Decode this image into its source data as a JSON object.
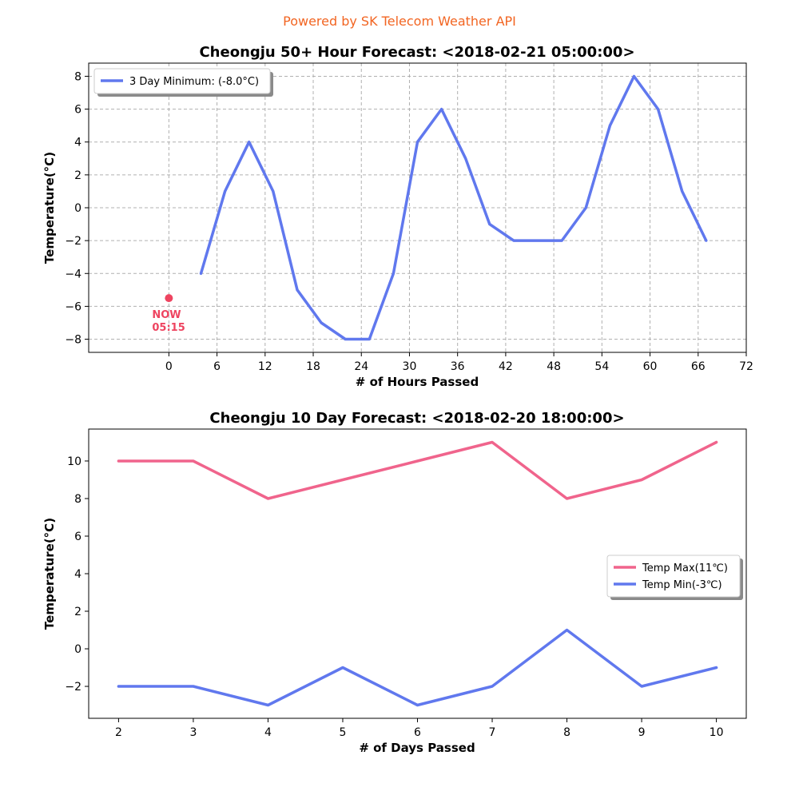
{
  "header": {
    "credit": "Powered by SK Telecom Weather API"
  },
  "colors": {
    "blue": "#6078ee",
    "red": "#f0648c",
    "now": "#ee4460",
    "credit": "#f26522"
  },
  "chart_data": [
    {
      "type": "line",
      "title": "Cheongju 50+ Hour Forecast: <2018-02-21 05:00:00>",
      "xlabel": "# of Hours Passed",
      "ylabel": "Temperature(°C)",
      "xlim": [
        -10,
        72
      ],
      "ylim": [
        -8.8,
        8.8
      ],
      "xticks": [
        0,
        6,
        12,
        18,
        24,
        30,
        36,
        42,
        48,
        54,
        60,
        66,
        72
      ],
      "yticks": [
        -8,
        -6,
        -4,
        -2,
        0,
        2,
        4,
        6,
        8
      ],
      "grid": true,
      "legend_position": "top-left",
      "series": [
        {
          "name": "3 Day Minimum: (-8.0°C)",
          "color": "#6078ee",
          "x": [
            4,
            7,
            10,
            13,
            16,
            19,
            22,
            25,
            28,
            31,
            34,
            37,
            40,
            43,
            46,
            49,
            52,
            55,
            58,
            61,
            64,
            67
          ],
          "y": [
            -4,
            1,
            4,
            1,
            -5,
            -7,
            -8,
            -8,
            -4,
            4,
            6,
            3,
            -1,
            -2,
            -2,
            -2,
            0,
            5,
            8,
            6,
            1,
            -2
          ]
        }
      ],
      "annotation": {
        "x": 0,
        "y": -5.5,
        "label_line1": "NOW",
        "label_line2": "05:15",
        "color": "#ee4460"
      }
    },
    {
      "type": "line",
      "title": "Cheongju 10 Day Forecast: <2018-02-20 18:00:00>",
      "xlabel": "# of Days Passed",
      "ylabel": "Temperature(°C)",
      "xlim": [
        1.6,
        10.4
      ],
      "ylim": [
        -3.7,
        11.7
      ],
      "xticks": [
        2,
        3,
        4,
        5,
        6,
        7,
        8,
        9,
        10
      ],
      "yticks": [
        -2,
        0,
        2,
        4,
        6,
        8,
        10
      ],
      "grid": false,
      "legend_position": "center-right",
      "series": [
        {
          "name": "Temp Max(11℃)",
          "color": "#f0648c",
          "x": [
            2,
            3,
            4,
            5,
            6,
            7,
            8,
            9,
            10
          ],
          "y": [
            10,
            10,
            8,
            9,
            10,
            11,
            8,
            9,
            11
          ]
        },
        {
          "name": "Temp Min(-3℃)",
          "color": "#6078ee",
          "x": [
            2,
            3,
            4,
            5,
            6,
            7,
            8,
            9,
            10
          ],
          "y": [
            -2,
            -2,
            -3,
            -1,
            -3,
            -2,
            1,
            -2,
            -1
          ]
        }
      ]
    }
  ]
}
